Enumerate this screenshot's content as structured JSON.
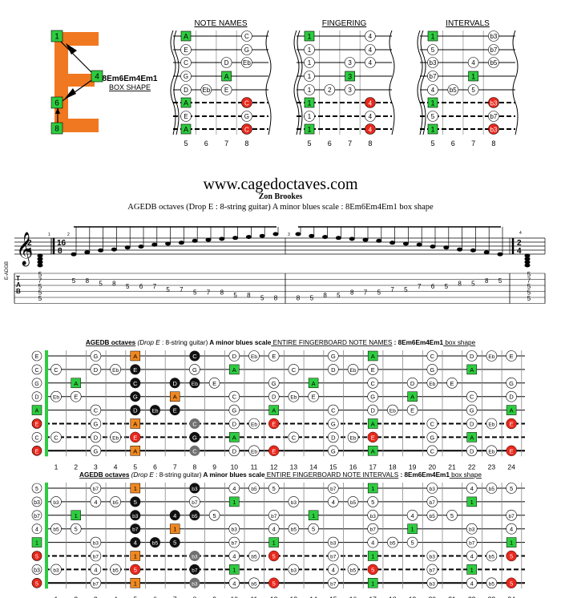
{
  "shape_box": {
    "letter": "E",
    "name": "8Em6Em4Em1",
    "subtitle": "BOX SHAPE",
    "markers": [
      "1",
      "4",
      "6",
      "8"
    ]
  },
  "diagrams": [
    {
      "title": "NOTE NAMES",
      "mode": "names"
    },
    {
      "title": "FINGERING",
      "mode": "fingers"
    },
    {
      "title": "INTERVALS",
      "mode": "intervals"
    }
  ],
  "small_fret_numbers": [
    "5",
    "6",
    "7",
    "8"
  ],
  "site": {
    "url": "www.cagedoctaves.com",
    "author": "Zon Brookes",
    "caption": "AGEDB octaves (Drop E : 8-string guitar) A minor blues scale : 8Em6Em4Em1 box shape"
  },
  "notation": {
    "time_sig_a": [
      "2",
      "4"
    ],
    "time_sig_b": [
      "16",
      "8"
    ],
    "measure_numbers": [
      "1",
      "2",
      "3",
      "4"
    ],
    "rotated_label": "E-ADGB",
    "tab_label": [
      "T",
      "A",
      "B"
    ],
    "tab_numbers_m2": [
      {
        "s": 7,
        "v": "5"
      },
      {
        "s": 7,
        "v": "8"
      },
      {
        "s": 6,
        "v": "5"
      },
      {
        "s": 6,
        "v": "8"
      },
      {
        "s": 5,
        "v": "5"
      },
      {
        "s": 5,
        "v": "6"
      },
      {
        "s": 5,
        "v": "7"
      },
      {
        "s": 4,
        "v": "5"
      },
      {
        "s": 4,
        "v": "7"
      },
      {
        "s": 3,
        "v": "5"
      },
      {
        "s": 3,
        "v": "7"
      },
      {
        "s": 3,
        "v": "8"
      },
      {
        "s": 2,
        "v": "5"
      },
      {
        "s": 2,
        "v": "8"
      },
      {
        "s": 1,
        "v": "5"
      },
      {
        "s": 1,
        "v": "8"
      }
    ],
    "tab_numbers_m3": [
      {
        "s": 1,
        "v": "8"
      },
      {
        "s": 1,
        "v": "5"
      },
      {
        "s": 2,
        "v": "8"
      },
      {
        "s": 2,
        "v": "5"
      },
      {
        "s": 3,
        "v": "8"
      },
      {
        "s": 3,
        "v": "7"
      },
      {
        "s": 3,
        "v": "5"
      },
      {
        "s": 4,
        "v": "7"
      },
      {
        "s": 4,
        "v": "5"
      },
      {
        "s": 5,
        "v": "7"
      },
      {
        "s": 5,
        "v": "6"
      },
      {
        "s": 5,
        "v": "5"
      },
      {
        "s": 6,
        "v": "8"
      },
      {
        "s": 6,
        "v": "5"
      },
      {
        "s": 7,
        "v": "8"
      },
      {
        "s": 7,
        "v": "5"
      }
    ],
    "tab_chord_m1": [
      "5",
      "7",
      "5",
      "5",
      "5"
    ],
    "tab_chord_m4": [
      "5",
      "7",
      "5",
      "5",
      "5"
    ]
  },
  "fb_names": {
    "title": {
      "a": "AGEDB octaves",
      "b": "(Drop E",
      "c": " : 8-string guitar)",
      "d": "A minor blues scale",
      "e": "ENTIRE FINGERBOARD  NOTE NAMES",
      "f": ": 8Em6Em4Em1",
      "g": "box shape"
    },
    "open": [
      "E",
      "C",
      "G",
      "D",
      "A",
      "E",
      "C",
      "E"
    ],
    "rows": [
      {
        "3": "G",
        "5": "A",
        "8": "C",
        "10": "D",
        "11": "Eb",
        "12": "E",
        "15": "G",
        "17": "A",
        "20": "C",
        "22": "D",
        "23": "Eb",
        "24": "E"
      },
      {
        "1": "C",
        "3": "D",
        "4": "Eb",
        "5": "E",
        "8": "G",
        "10": "A",
        "13": "C",
        "15": "D",
        "16": "Eb",
        "17": "E",
        "20": "G",
        "22": "A"
      },
      {
        "2": "A",
        "5": "C",
        "7": "D",
        "8": "Eb",
        "9": "E",
        "12": "G",
        "14": "A",
        "17": "C",
        "19": "D",
        "20": "Eb",
        "21": "E",
        "24": "G"
      },
      {
        "1": "Eb",
        "2": "E",
        "5": "G",
        "7": "A",
        "10": "C",
        "12": "D",
        "13": "Eb",
        "14": "E",
        "17": "G",
        "19": "A",
        "22": "C",
        "24": "D"
      },
      {
        "3": "C",
        "5": "D",
        "6": "Eb",
        "7": "E",
        "10": "G",
        "12": "A",
        "15": "C",
        "17": "D",
        "18": "Eb",
        "19": "E",
        "22": "G",
        "24": "A"
      },
      {
        "3": "G",
        "5": "A",
        "8": "C",
        "10": "D",
        "11": "Eb",
        "12": "E",
        "15": "G",
        "17": "A",
        "20": "C",
        "22": "D",
        "23": "Eb",
        "24": "E"
      },
      {
        "1": "C",
        "3": "D",
        "4": "Eb",
        "5": "E",
        "8": "G",
        "10": "A",
        "13": "C",
        "15": "D",
        "16": "Eb",
        "17": "E",
        "20": "G",
        "22": "A"
      },
      {
        "3": "G",
        "5": "A",
        "8": "C",
        "10": "D",
        "11": "Eb",
        "12": "E",
        "15": "G",
        "17": "A",
        "20": "C",
        "22": "D",
        "23": "Eb",
        "24": "E"
      }
    ]
  },
  "fb_intervals": {
    "title": {
      "a": "AGEDB octaves",
      "b": "(Drop E",
      "c": " : 8-string guitar)",
      "d": "A minor blues scale",
      "e": "ENTIRE FINGERBOARD  NOTE INTERVALS",
      "f": ": 8Em6Em4Em1",
      "g": "box shape"
    },
    "open": [
      "5",
      "b3",
      "b7",
      "4",
      "1",
      "5",
      "b3",
      "5"
    ]
  },
  "fret_numbers": [
    "1",
    "2",
    "3",
    "4",
    "5",
    "6",
    "7",
    "8",
    "9",
    "10",
    "11",
    "12",
    "13",
    "14",
    "15",
    "16",
    "17",
    "18",
    "19",
    "20",
    "21",
    "22",
    "23",
    "24"
  ],
  "colors": {
    "root": "#2ecc40",
    "fifth": "#e8281c",
    "orange": "#f08820",
    "black": "#111111",
    "grey": "#707070"
  }
}
